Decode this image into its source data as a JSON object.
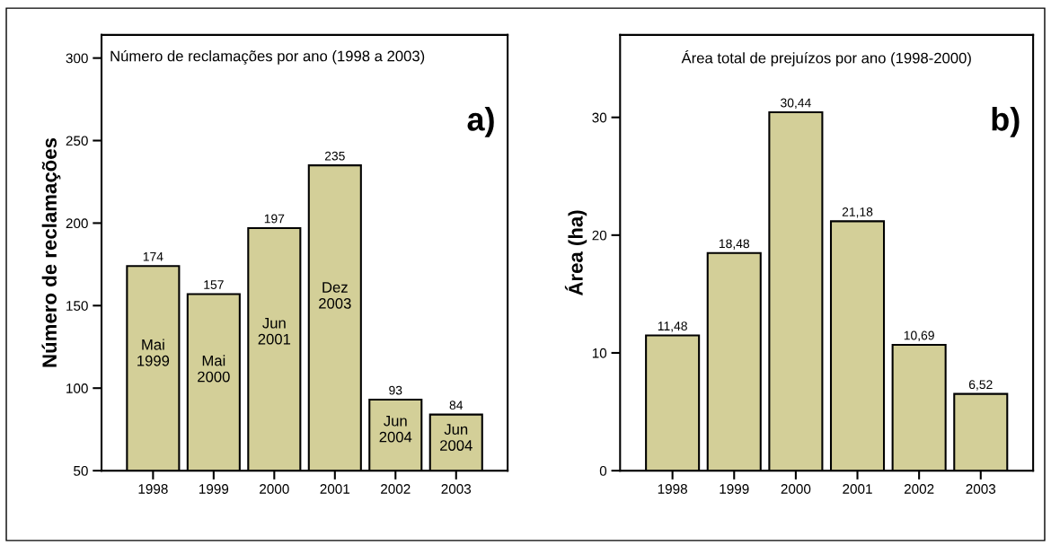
{
  "chart_data": [
    {
      "type": "bar",
      "title": "Número de reclamações por ano (1998 a 2003)",
      "ylabel": "Número de reclamações",
      "categories": [
        "1998",
        "1999",
        "2000",
        "2001",
        "2002",
        "2003"
      ],
      "values": [
        174,
        157,
        197,
        235,
        93,
        84
      ],
      "color": "#d3cf98",
      "data_labels": true,
      "ylim": [
        50,
        314
      ],
      "yticks": [
        50,
        100,
        150,
        200,
        250,
        300
      ],
      "grid": false,
      "legend": false,
      "annotations": [
        "a)",
        "Mai\n1999",
        "Mai\n2000",
        "Jun\n2001",
        "Dez\n2003",
        "Jun\n2004",
        "Jun\n2004"
      ]
    },
    {
      "type": "bar",
      "title": "Área total de prejuízos por ano (1998-2000)",
      "ylabel": "Área (ha)",
      "categories": [
        "1998",
        "1999",
        "2000",
        "2001",
        "2002",
        "2003"
      ],
      "values": [
        11.48,
        18.48,
        30.44,
        21.18,
        10.69,
        6.52
      ],
      "color": "#d3cf98",
      "value_labels": [
        "11,48",
        "18,48",
        "30,44",
        "21,18",
        "10,69",
        "6,52"
      ],
      "ylim": [
        0,
        37
      ],
      "yticks": [
        0,
        10,
        20,
        30
      ],
      "grid": false,
      "legend": false,
      "annotations": [
        "b)"
      ]
    }
  ]
}
